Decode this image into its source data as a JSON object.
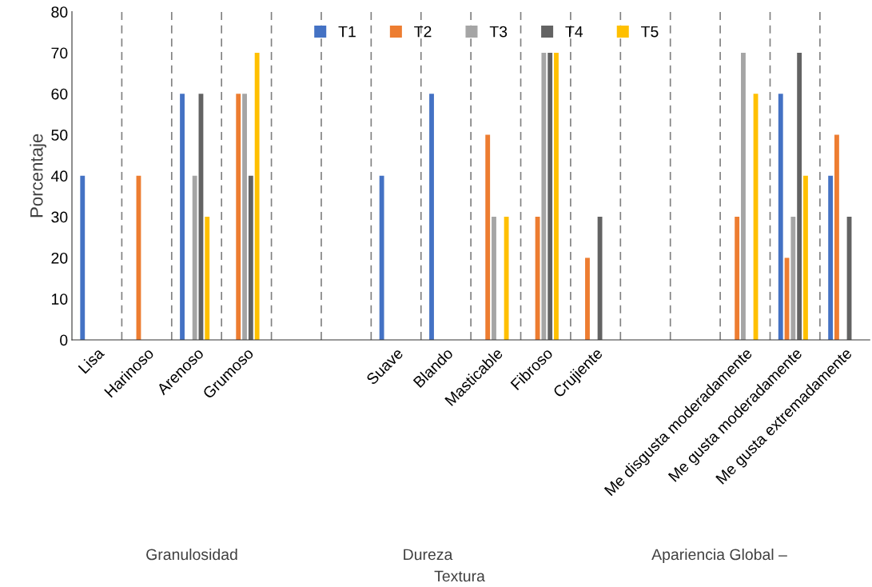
{
  "chart_data": {
    "type": "bar",
    "ylabel": "Porcentaje",
    "categories": [
      "Lisa",
      "Harinoso",
      "Arenoso",
      "Grumoso",
      null,
      null,
      "Suave",
      "Blando",
      "Masticable",
      "Fibroso",
      "Crujiente",
      null,
      null,
      "Me disgusta moderadamente",
      "Me gusta moderadamente",
      "Me gusta extremadamente"
    ],
    "series": [
      {
        "name": "T1",
        "color": "#4472c4",
        "values": [
          40,
          null,
          60,
          null,
          null,
          null,
          40,
          60,
          null,
          null,
          null,
          null,
          null,
          null,
          60,
          40
        ]
      },
      {
        "name": "T2",
        "color": "#ed7d31",
        "values": [
          null,
          40,
          null,
          60,
          null,
          null,
          null,
          null,
          50,
          30,
          20,
          null,
          null,
          30,
          20,
          50
        ]
      },
      {
        "name": "T3",
        "color": "#a5a5a5",
        "values": [
          null,
          null,
          40,
          60,
          null,
          null,
          null,
          null,
          30,
          70,
          null,
          null,
          null,
          70,
          30,
          null
        ]
      },
      {
        "name": "T4",
        "color": "#636363",
        "values": [
          null,
          null,
          60,
          40,
          null,
          null,
          null,
          null,
          null,
          70,
          30,
          null,
          null,
          null,
          70,
          30
        ]
      },
      {
        "name": "T5",
        "color": "#ffc000",
        "values": [
          null,
          null,
          30,
          70,
          null,
          null,
          null,
          null,
          30,
          70,
          null,
          null,
          null,
          60,
          40,
          null
        ]
      }
    ],
    "ylim": [
      0,
      80
    ],
    "yticks": [
      0,
      10,
      20,
      30,
      40,
      50,
      60,
      70,
      80
    ],
    "grid": "x",
    "legend": "top",
    "annotations": [
      "Granulosidad",
      "Dureza",
      "Textura",
      "Apariencia Global –"
    ]
  }
}
